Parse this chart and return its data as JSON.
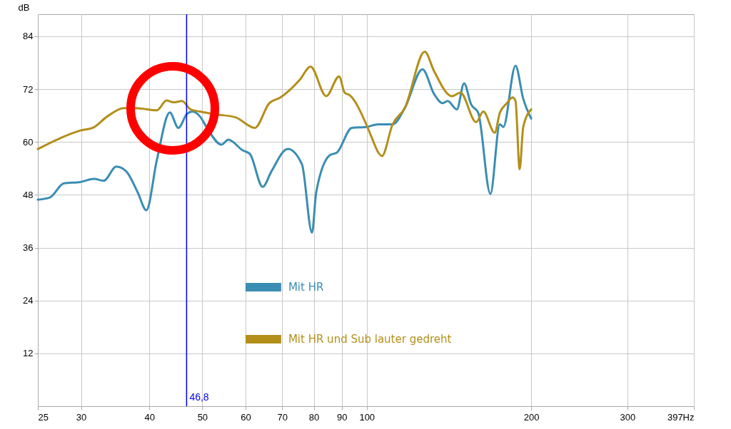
{
  "chart_data": {
    "type": "line",
    "ylabel": "dB",
    "log": "x",
    "grid": true,
    "legend": "center",
    "line_style": "solid",
    "marker": "none",
    "xlim": [
      25,
      397
    ],
    "xticks": [
      25,
      30,
      40,
      50,
      60,
      70,
      80,
      90,
      100,
      200,
      300,
      {
        "value": 397,
        "label": "397Hz"
      }
    ],
    "ylim": [
      0,
      89
    ],
    "yticks": [
      12,
      24,
      36,
      48,
      60,
      72,
      84
    ],
    "ref_lines": [
      {
        "axis": "x",
        "value": 46.8,
        "label": "46,8",
        "color": "#0000ff"
      }
    ],
    "series": [
      {
        "name": "Mit HR",
        "color": "#3a8db3",
        "x": [
          25,
          26.3,
          27.9,
          29.9,
          31.7,
          33.0,
          34.8,
          36.3,
          38.1,
          39.5,
          41.3,
          43.6,
          45.2,
          46.9,
          48.0,
          49.5,
          51.0,
          54.2,
          55.8,
          59.3,
          61.1,
          64.5,
          66.9,
          71.7,
          76.1,
          79.4,
          80.8,
          85.6,
          88.2,
          93.9,
          99.8,
          105.0,
          111.5,
          117.4,
          126.5,
          132.8,
          137.7,
          140.6,
          146.2,
          150.7,
          155.3,
          160.0,
          168.4,
          175.2,
          177.8,
          187.2,
          193.4,
          200
        ],
        "values": [
          46.9,
          47.4,
          50.6,
          50.9,
          51.6,
          51.2,
          54.4,
          53.3,
          48.5,
          44.5,
          56.0,
          66.7,
          63.2,
          66.4,
          66.9,
          65.8,
          63.2,
          59.4,
          60.5,
          58.1,
          57.3,
          49.8,
          53.3,
          58.4,
          54.9,
          39.4,
          48.5,
          57.0,
          57.6,
          63.2,
          63.4,
          64.0,
          64.0,
          67.7,
          76.5,
          70.9,
          68.8,
          69.3,
          67.4,
          73.3,
          68.5,
          66.6,
          48.2,
          64.0,
          63.4,
          77.3,
          69.8,
          65.3
        ]
      },
      {
        "name": "Mit HR und Sub lauter gedreht",
        "color": "#b38f1a",
        "x": [
          25,
          27.4,
          29.9,
          31.5,
          33.5,
          35.9,
          37.8,
          41.3,
          43.0,
          44.3,
          45.9,
          47.6,
          49.5,
          52.6,
          57.5,
          62.4,
          66.3,
          69.5,
          75.4,
          78.9,
          84.3,
          89.0,
          91.1,
          93.1,
          99.8,
          101.9,
          105.0,
          106.6,
          111.5,
          117.4,
          127.7,
          132.8,
          143.2,
          148.4,
          158.6,
          163.4,
          171.5,
          175.2,
          180.5,
          184.9,
          187.2,
          190.5,
          193.4,
          200
        ],
        "values": [
          58.4,
          60.8,
          62.6,
          63.2,
          65.8,
          67.7,
          67.7,
          67.2,
          69.4,
          69.0,
          69.3,
          67.4,
          66.9,
          66.3,
          65.6,
          63.2,
          68.8,
          70.1,
          74.1,
          77.1,
          70.4,
          74.9,
          71.2,
          70.6,
          64.0,
          61.3,
          57.6,
          56.8,
          64.0,
          67.7,
          80.5,
          76.1,
          70.4,
          71.2,
          64.5,
          66.9,
          62.1,
          66.6,
          68.8,
          70.1,
          69.3,
          53.8,
          63.4,
          67.4
        ]
      }
    ]
  }
}
